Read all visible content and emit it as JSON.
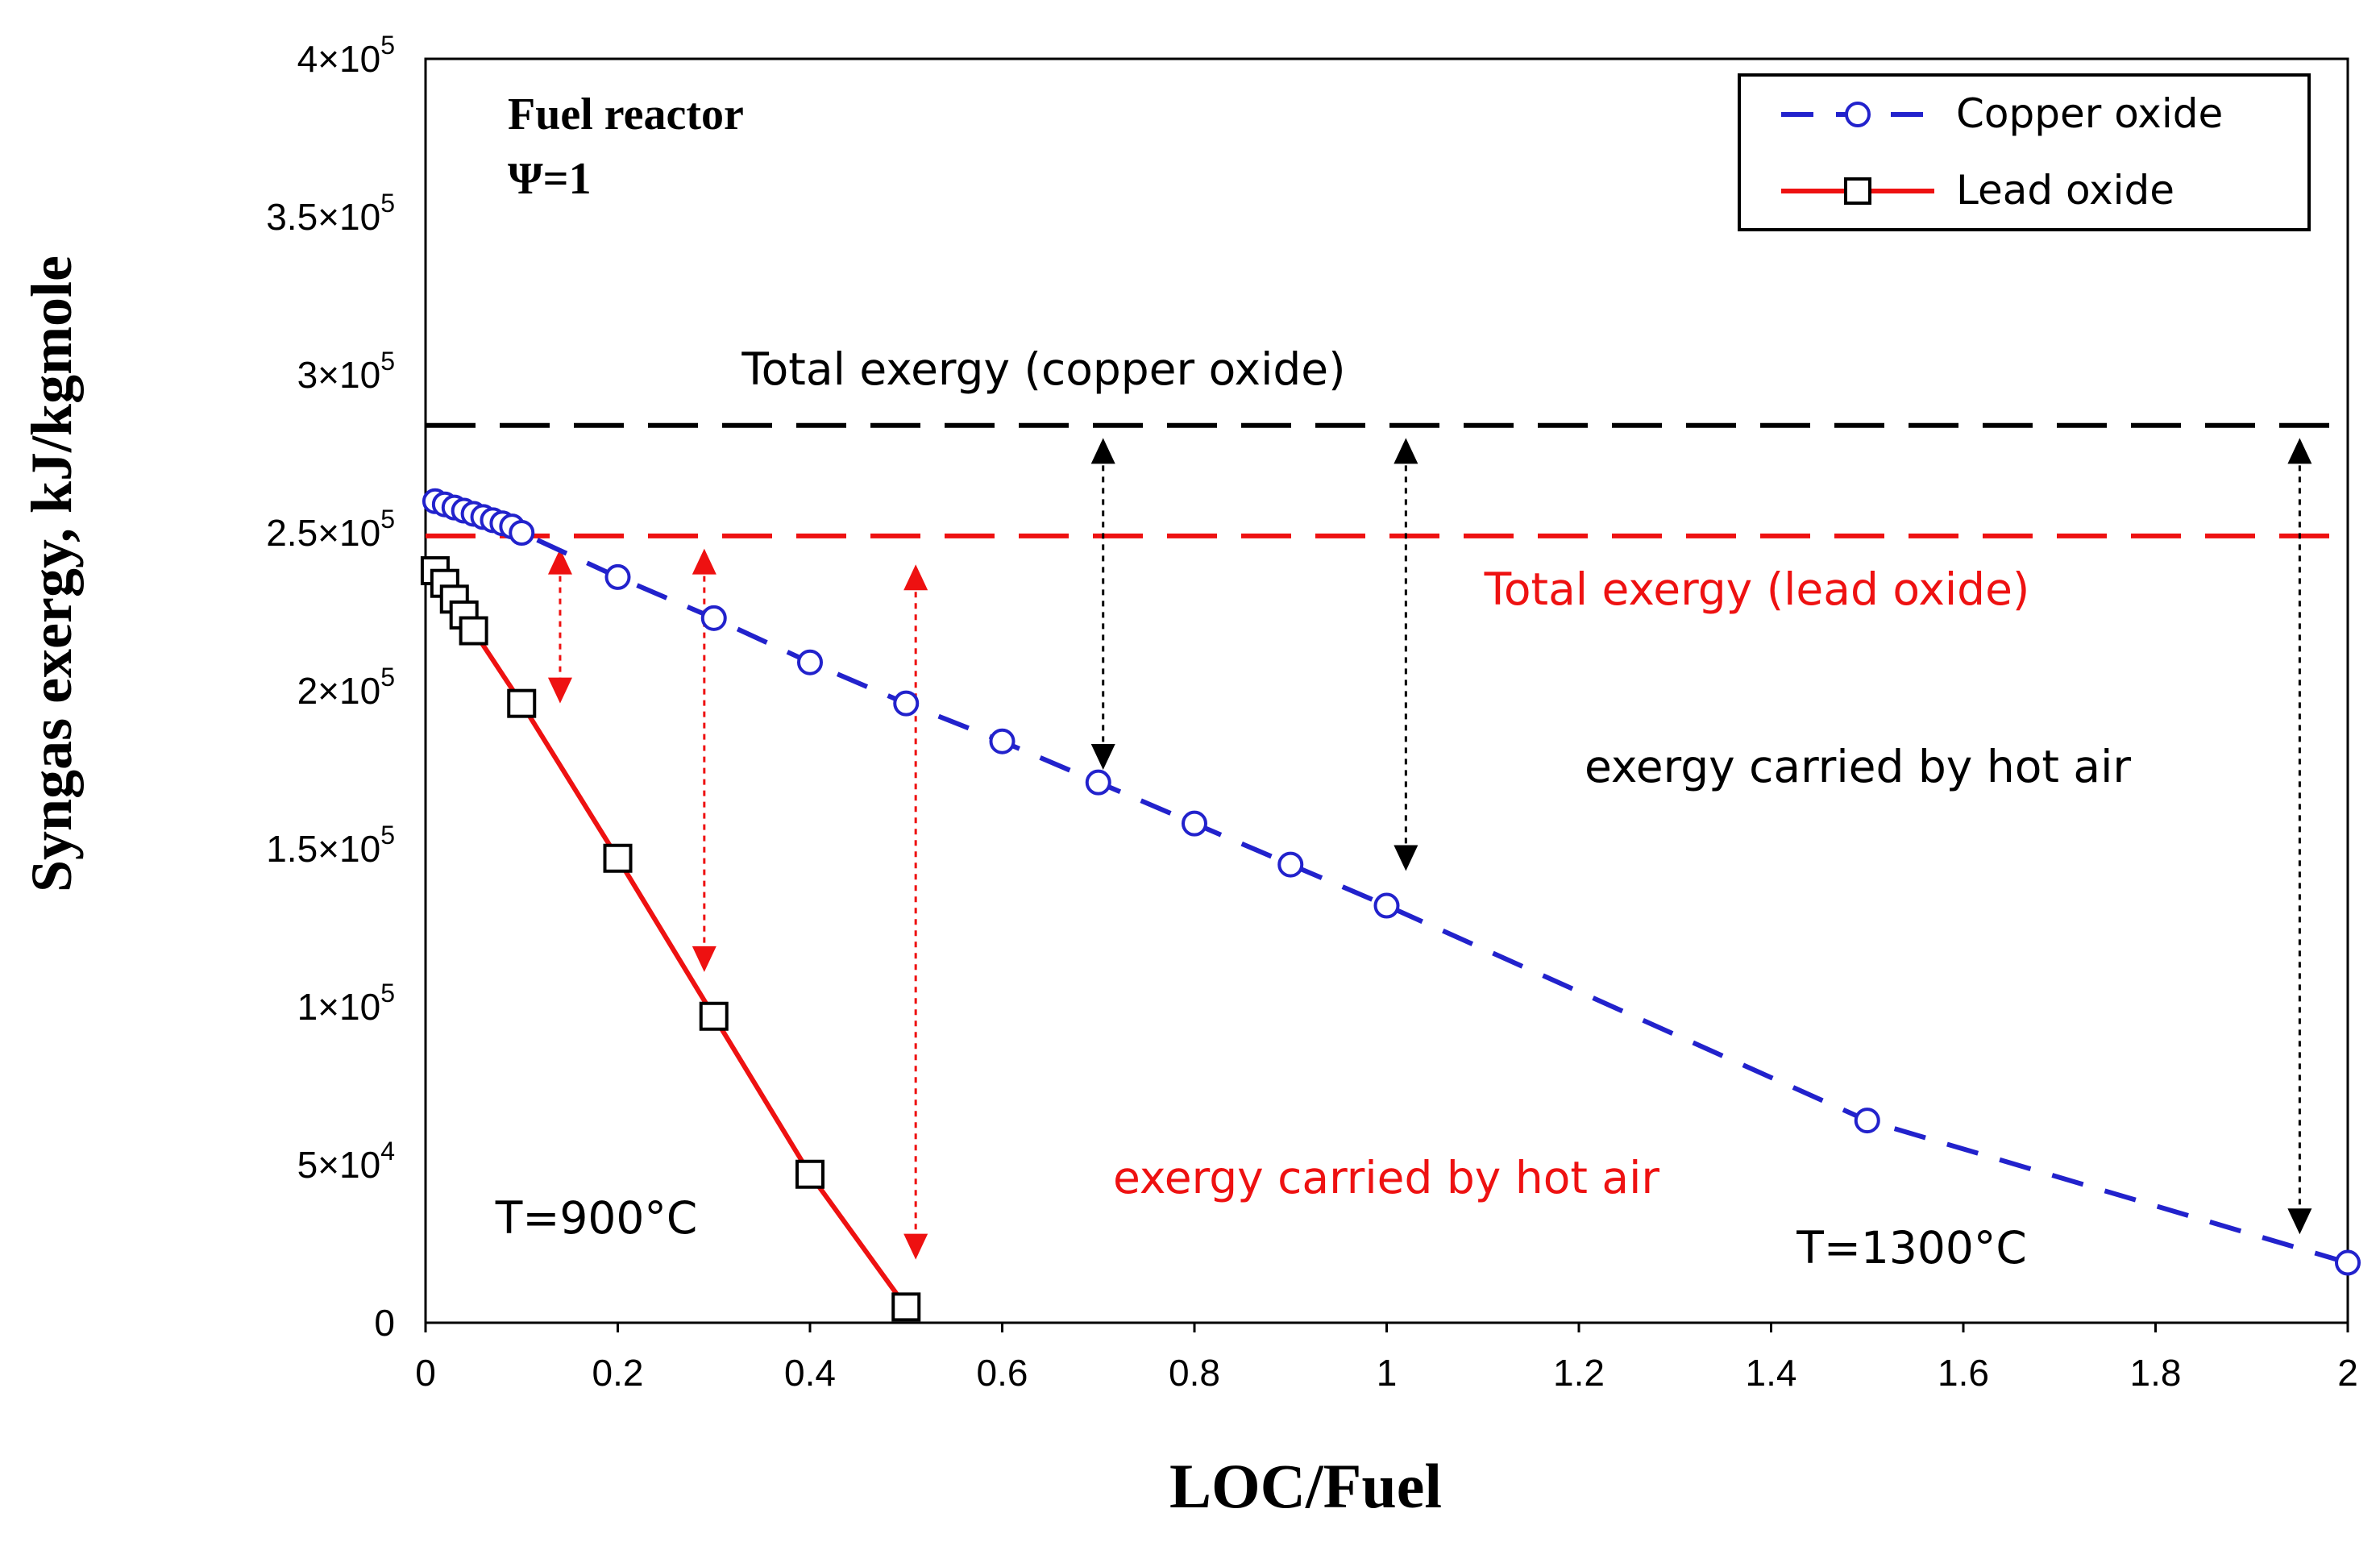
{
  "chart_data": {
    "type": "line",
    "title": "",
    "xlabel": "LOC/Fuel",
    "ylabel": "Syngas exergy, kJ/kgmole",
    "xlim": [
      0,
      2
    ],
    "ylim": [
      0,
      400000
    ],
    "grid": false,
    "legend_position": "top-right",
    "x_ticks": [
      {
        "value": 0,
        "label": "0"
      },
      {
        "value": 0.2,
        "label": "0.2"
      },
      {
        "value": 0.4,
        "label": "0.4"
      },
      {
        "value": 0.6,
        "label": "0.6"
      },
      {
        "value": 0.8,
        "label": "0.8"
      },
      {
        "value": 1,
        "label": "1"
      },
      {
        "value": 1.2,
        "label": "1.2"
      },
      {
        "value": 1.4,
        "label": "1.4"
      },
      {
        "value": 1.6,
        "label": "1.6"
      },
      {
        "value": 1.8,
        "label": "1.8"
      },
      {
        "value": 2,
        "label": "2"
      }
    ],
    "y_ticks": [
      {
        "value": 0,
        "mant": "0",
        "exp": ""
      },
      {
        "value": 50000,
        "mant": "5×10",
        "exp": "4"
      },
      {
        "value": 100000,
        "mant": "1×10",
        "exp": "5"
      },
      {
        "value": 150000,
        "mant": "1.5×10",
        "exp": "5"
      },
      {
        "value": 200000,
        "mant": "2×10",
        "exp": "5"
      },
      {
        "value": 250000,
        "mant": "2.5×10",
        "exp": "5"
      },
      {
        "value": 300000,
        "mant": "3×10",
        "exp": "5"
      },
      {
        "value": 350000,
        "mant": "3.5×10",
        "exp": "5"
      },
      {
        "value": 400000,
        "mant": "4×10",
        "exp": "5"
      }
    ],
    "series": [
      {
        "name": "Copper oxide",
        "color": "#2222cc",
        "line": "dashed",
        "marker": "circle",
        "x": [
          0.01,
          0.02,
          0.03,
          0.04,
          0.05,
          0.06,
          0.07,
          0.08,
          0.09,
          0.1,
          0.2,
          0.3,
          0.4,
          0.5,
          0.6,
          0.7,
          0.8,
          0.9,
          1.0,
          1.5,
          2.0
        ],
        "y": [
          260000,
          259000,
          258000,
          257000,
          256000,
          255000,
          254000,
          253000,
          252000,
          250000,
          236000,
          223000,
          209000,
          196000,
          184000,
          171000,
          158000,
          145000,
          132000,
          64000,
          19000
        ]
      },
      {
        "name": "Lead oxide",
        "color": "#ee1111",
        "line": "solid",
        "marker": "square",
        "x": [
          0.01,
          0.02,
          0.03,
          0.04,
          0.05,
          0.1,
          0.2,
          0.3,
          0.4,
          0.5
        ],
        "y": [
          238000,
          234000,
          229000,
          224000,
          219000,
          196000,
          147000,
          97000,
          47000,
          5000
        ]
      }
    ],
    "reference_lines": [
      {
        "name": "Total exergy (copper oxide)",
        "y": 284000,
        "color": "#000000"
      },
      {
        "name": "Total exergy (lead oxide)",
        "y": 249000,
        "color": "#ee1111"
      }
    ],
    "double_arrows": [
      {
        "x": 0.14,
        "y1": 245000,
        "y2": 196000,
        "color": "#ee1111"
      },
      {
        "x": 0.29,
        "y1": 245000,
        "y2": 111000,
        "color": "#ee1111"
      },
      {
        "x": 0.51,
        "y1": 240000,
        "y2": 20000,
        "color": "#ee1111"
      },
      {
        "x": 0.705,
        "y1": 280000,
        "y2": 175000,
        "color": "#000000"
      },
      {
        "x": 1.02,
        "y1": 280000,
        "y2": 143000,
        "color": "#000000"
      },
      {
        "x": 1.95,
        "y1": 280000,
        "y2": 28000,
        "color": "#000000"
      }
    ],
    "annotations": {
      "reactor_label": "Fuel reactor",
      "psi_label": "Ψ=1",
      "total_copper_label": "Total exergy (copper oxide)",
      "total_lead_label": "Total exergy (lead oxide)",
      "hot_air_black": "exergy carried by hot air",
      "hot_air_red": "exergy carried by hot air",
      "temp_lead": "T=900°C",
      "temp_copper": "T=1300°C"
    },
    "legend": [
      {
        "label": "Copper oxide"
      },
      {
        "label": "Lead oxide"
      }
    ]
  }
}
